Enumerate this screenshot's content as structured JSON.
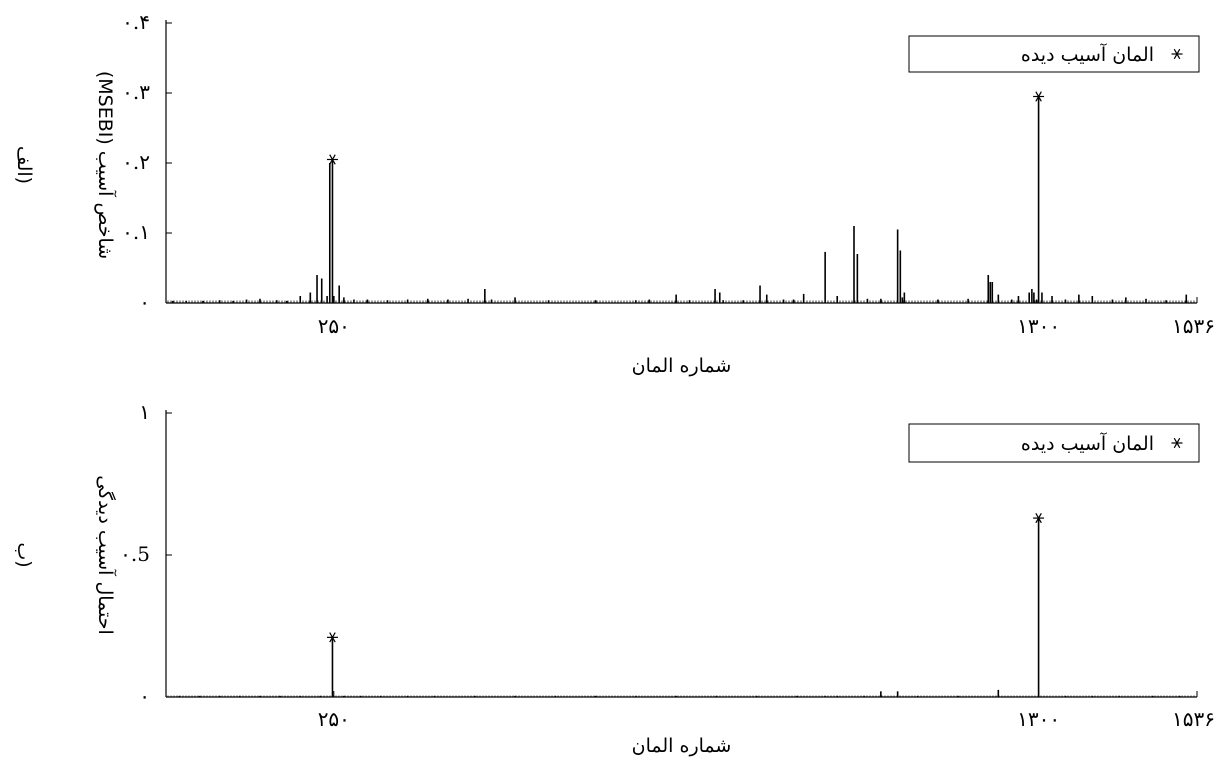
{
  "chart_data": [
    {
      "type": "bar",
      "panel_label": "(الف",
      "ylabel": "شاخص آسیب (MSEBI)",
      "xlabel": "شماره المان",
      "xlim": [
        0,
        1536
      ],
      "ylim": [
        0,
        0.4
      ],
      "x_ticks": [
        250,
        1300,
        1536
      ],
      "x_tick_labels": [
        "۲۵۰",
        "۱۳۰۰",
        "۱۵۳۶"
      ],
      "y_ticks": [
        0,
        0.1,
        0.2,
        0.3,
        0.4
      ],
      "y_tick_labels": [
        "۰",
        "۰.۱",
        "۰.۲",
        "۰.۳",
        "۰.۴"
      ],
      "legend": {
        "label": "المان آسیب دیده",
        "marker": "*",
        "position": "top-right"
      },
      "series": [
        {
          "name": "",
          "style": "stem",
          "x": [
            10,
            30,
            55,
            80,
            100,
            120,
            140,
            165,
            180,
            200,
            215,
            225,
            232,
            240,
            244,
            248,
            250,
            258,
            265,
            280,
            300,
            330,
            360,
            390,
            420,
            450,
            475,
            485,
            520,
            570,
            640,
            700,
            720,
            760,
            780,
            818,
            825,
            830,
            860,
            885,
            895,
            920,
            935,
            950,
            982,
            1000,
            1025,
            1030,
            1045,
            1065,
            1090,
            1094,
            1097,
            1100,
            1150,
            1195,
            1225,
            1228,
            1231,
            1240,
            1260,
            1270,
            1286,
            1290,
            1293,
            1297,
            1300,
            1305,
            1320,
            1340,
            1360,
            1380,
            1410,
            1430,
            1460,
            1490,
            1520
          ],
          "values": [
            0.003,
            0.003,
            0.003,
            0.004,
            0.003,
            0.005,
            0.006,
            0.004,
            0.003,
            0.01,
            0.015,
            0.04,
            0.035,
            0.01,
            0.2,
            0.205,
            0.01,
            0.025,
            0.008,
            0.005,
            0.005,
            0.004,
            0.005,
            0.006,
            0.005,
            0.006,
            0.02,
            0.005,
            0.008,
            0.004,
            0.004,
            0.004,
            0.005,
            0.012,
            0.004,
            0.02,
            0.015,
            0.004,
            0.004,
            0.025,
            0.012,
            0.005,
            0.005,
            0.013,
            0.073,
            0.01,
            0.11,
            0.07,
            0.006,
            0.006,
            0.105,
            0.075,
            0.008,
            0.015,
            0.005,
            0.006,
            0.04,
            0.03,
            0.03,
            0.012,
            0.005,
            0.01,
            0.015,
            0.02,
            0.015,
            0.005,
            0.295,
            0.015,
            0.01,
            0.005,
            0.012,
            0.01,
            0.005,
            0.008,
            0.006,
            0.004,
            0.012
          ]
        }
      ],
      "markers": [
        {
          "x": 248,
          "y": 0.205
        },
        {
          "x": 1300,
          "y": 0.295
        }
      ]
    },
    {
      "type": "bar",
      "panel_label": "(ب",
      "ylabel": "احتمال آسیب دیدگی",
      "xlabel": "شماره المان",
      "xlim": [
        0,
        1536
      ],
      "ylim": [
        0,
        1
      ],
      "x_ticks": [
        250,
        1300,
        1536
      ],
      "x_tick_labels": [
        "۲۵۰",
        "۱۳۰۰",
        "۱۵۳۶"
      ],
      "y_ticks": [
        0,
        0.5,
        1
      ],
      "y_tick_labels": [
        "۰",
        "۰.5",
        "۱"
      ],
      "legend": {
        "label": "المان آسیب دیده",
        "marker": "*",
        "position": "top-right"
      },
      "series": [
        {
          "name": "",
          "style": "stem",
          "x": [
            20,
            50,
            80,
            110,
            140,
            170,
            200,
            230,
            265,
            290,
            320,
            360,
            400,
            460,
            520,
            580,
            640,
            700,
            760,
            820,
            880,
            940,
            982,
            1000,
            1040,
            1065,
            1090,
            1120,
            1180,
            1240,
            1300,
            1340,
            1380,
            1420,
            1470,
            1510
          ],
          "values": [
            0.004,
            0.004,
            0.004,
            0.004,
            0.004,
            0.004,
            0.004,
            0.004,
            0.004,
            0.004,
            0.004,
            0.004,
            0.004,
            0.004,
            0.004,
            0.004,
            0.004,
            0.004,
            0.004,
            0.004,
            0.004,
            0.004,
            0.004,
            0.004,
            0.004,
            0.02,
            0.02,
            0.004,
            0.004,
            0.025,
            0.004,
            0.004,
            0.004,
            0.004,
            0.004,
            0.004
          ]
        },
        {
          "name": "",
          "style": "stem",
          "x": [
            248,
            1300
          ],
          "values": [
            0.21,
            0.63
          ]
        }
      ],
      "markers": [
        {
          "x": 248,
          "y": 0.21
        },
        {
          "x": 1300,
          "y": 0.63
        }
      ]
    }
  ],
  "colors": {
    "ink": "#000000",
    "background": "#ffffff"
  }
}
